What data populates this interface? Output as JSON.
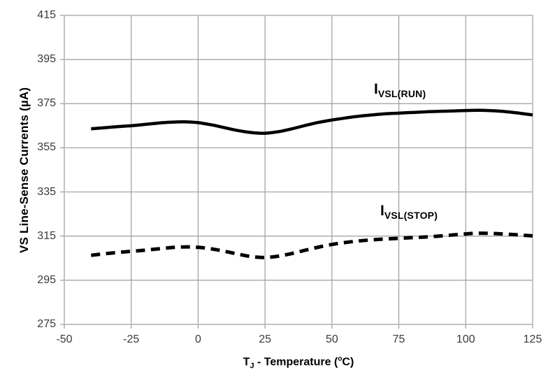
{
  "chart_data": {
    "type": "line",
    "title": "",
    "ylabel": "VS Line-Sense Currents (µA)",
    "xlabel_parts": {
      "main": "T",
      "sub": "J",
      "mid": " - Temperature (",
      "sup": "o",
      "end": "C)"
    },
    "xlim": [
      -50,
      125
    ],
    "ylim": [
      275,
      415
    ],
    "x_ticks": [
      "-50",
      "-25",
      "0",
      "25",
      "50",
      "75",
      "100",
      "125"
    ],
    "y_ticks": [
      "275",
      "295",
      "315",
      "335",
      "355",
      "375",
      "395",
      "415"
    ],
    "x_tick_values": [
      -50,
      -25,
      0,
      25,
      50,
      75,
      100,
      125
    ],
    "y_tick_values": [
      275,
      295,
      315,
      335,
      355,
      375,
      395,
      415
    ],
    "grid": true,
    "legend_position": "annotations-on-chart",
    "colors": {
      "line": "#000000",
      "grid": "#9e9e9e",
      "plot_border": "#c3c3c3",
      "axis_text": "#3a3a3a",
      "background": "#ffffff"
    },
    "series": [
      {
        "name": "IVSL(RUN)",
        "label_main": "I",
        "label_sub": "VSL(RUN)",
        "line_style": "solid",
        "points": [
          [
            -40,
            363.6
          ],
          [
            -35,
            364.1
          ],
          [
            -30,
            364.6
          ],
          [
            -25,
            365.0
          ],
          [
            -20,
            365.6
          ],
          [
            -15,
            366.2
          ],
          [
            -10,
            366.6
          ],
          [
            -5,
            366.8
          ],
          [
            0,
            366.4
          ],
          [
            5,
            365.4
          ],
          [
            10,
            364.1
          ],
          [
            15,
            362.8
          ],
          [
            20,
            361.9
          ],
          [
            25,
            361.6
          ],
          [
            30,
            362.3
          ],
          [
            35,
            363.6
          ],
          [
            40,
            365.1
          ],
          [
            45,
            366.5
          ],
          [
            50,
            367.6
          ],
          [
            55,
            368.5
          ],
          [
            60,
            369.3
          ],
          [
            65,
            369.9
          ],
          [
            70,
            370.4
          ],
          [
            75,
            370.7
          ],
          [
            80,
            371.0
          ],
          [
            85,
            371.3
          ],
          [
            90,
            371.5
          ],
          [
            95,
            371.7
          ],
          [
            100,
            371.9
          ],
          [
            105,
            372.0
          ],
          [
            110,
            371.8
          ],
          [
            115,
            371.4
          ],
          [
            120,
            370.7
          ],
          [
            125,
            369.9
          ]
        ]
      },
      {
        "name": "IVSL(STOP)",
        "label_main": "I",
        "label_sub": "VSL(STOP)",
        "line_style": "dashed",
        "points": [
          [
            -40,
            306.3
          ],
          [
            -35,
            307.0
          ],
          [
            -30,
            307.6
          ],
          [
            -25,
            308.1
          ],
          [
            -20,
            308.6
          ],
          [
            -15,
            309.2
          ],
          [
            -10,
            309.8
          ],
          [
            -5,
            310.1
          ],
          [
            0,
            309.9
          ],
          [
            5,
            309.2
          ],
          [
            10,
            308.1
          ],
          [
            15,
            306.8
          ],
          [
            20,
            305.7
          ],
          [
            25,
            305.3
          ],
          [
            30,
            305.9
          ],
          [
            35,
            307.1
          ],
          [
            40,
            308.6
          ],
          [
            45,
            310.0
          ],
          [
            50,
            311.2
          ],
          [
            55,
            312.1
          ],
          [
            60,
            312.8
          ],
          [
            65,
            313.3
          ],
          [
            70,
            313.7
          ],
          [
            75,
            314.0
          ],
          [
            80,
            314.3
          ],
          [
            85,
            314.6
          ],
          [
            90,
            315.0
          ],
          [
            95,
            315.5
          ],
          [
            100,
            316.0
          ],
          [
            105,
            316.3
          ],
          [
            110,
            316.2
          ],
          [
            115,
            315.9
          ],
          [
            120,
            315.5
          ],
          [
            125,
            315.1
          ]
        ]
      }
    ]
  }
}
